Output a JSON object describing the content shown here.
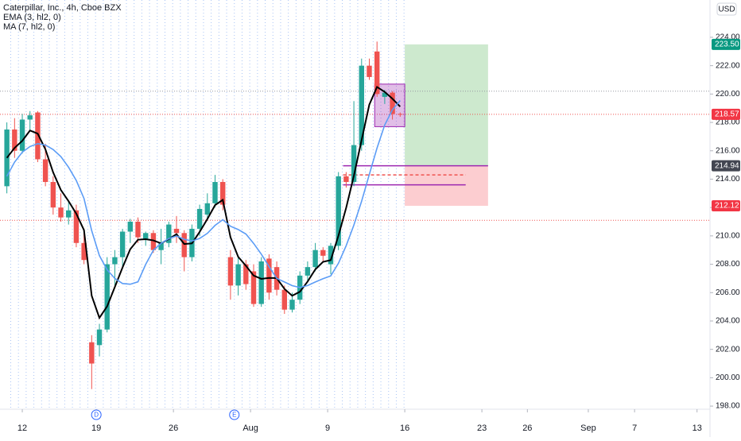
{
  "chart_data": {
    "type": "candlestick",
    "title": "Caterpillar, Inc., 4h, Cboe BZX",
    "currency": "USD",
    "up_color": "#26a69a",
    "down_color": "#ef5350",
    "x": [
      -2,
      -1,
      0,
      1,
      2,
      3,
      4,
      5,
      6,
      7,
      8,
      9,
      10,
      11,
      12,
      13,
      14,
      15,
      16,
      17,
      18,
      19,
      20,
      21,
      22,
      23,
      24,
      25,
      26,
      27,
      28,
      29,
      30,
      31,
      32,
      33,
      34,
      35,
      36,
      37,
      38,
      39,
      40,
      41,
      42,
      43,
      44,
      45,
      46,
      47,
      48,
      49
    ],
    "open": [
      213.5,
      217.5,
      216,
      218.2,
      218.7,
      215.4,
      213.8,
      212,
      211.3,
      211.8,
      209.5,
      202.5,
      202.3,
      203.4,
      208,
      208.5,
      210.3,
      211,
      209.8,
      210.2,
      209,
      209.5,
      210.5,
      210.2,
      208.5,
      210.5,
      211.5,
      212.3,
      213.8,
      208.5,
      206.5,
      208,
      207.5,
      205.2,
      208.4,
      207.8,
      206.2,
      204.8,
      205.5,
      207.2,
      207.8,
      209,
      208,
      209.3,
      214.2,
      213.8,
      216.4,
      222,
      223,
      219.8,
      220.1,
      218.6
    ],
    "high": [
      218,
      218.3,
      218.6,
      218.8,
      218.8,
      216.5,
      214.2,
      213,
      212.5,
      212.2,
      210.5,
      203,
      203.8,
      208.5,
      209,
      210.5,
      211.2,
      211.3,
      210.3,
      210.4,
      210.5,
      211,
      211.4,
      210.4,
      210.8,
      212.2,
      213,
      214.3,
      214,
      209,
      208.5,
      208.3,
      208,
      208.5,
      208.7,
      208.2,
      206.5,
      206,
      207.5,
      208.2,
      209.5,
      209.2,
      209.5,
      214.5,
      214.5,
      219.5,
      222.5,
      222.5,
      223.7,
      220.3,
      220.2,
      218.7
    ],
    "low": [
      213,
      215.5,
      215.8,
      217.5,
      215.2,
      213.5,
      211.5,
      211,
      210.8,
      209.2,
      208,
      199.2,
      201.5,
      203.2,
      206.5,
      207.8,
      209.5,
      209.5,
      209.3,
      208.8,
      208,
      209.2,
      209.5,
      207.5,
      208.2,
      210,
      211.2,
      212,
      211.8,
      205.5,
      205.8,
      206.2,
      205,
      205,
      205.5,
      205.8,
      204.5,
      204.6,
      205.2,
      206.8,
      207.5,
      208.2,
      207.3,
      209,
      213.4,
      213.5,
      216,
      221,
      219.8,
      219.3,
      218.2,
      218.4
    ],
    "close": [
      217.5,
      216,
      218.2,
      218.5,
      215.4,
      213.8,
      212,
      211.3,
      211.8,
      209.5,
      208.3,
      201,
      203.4,
      208,
      208.5,
      210.3,
      211,
      209.9,
      210.2,
      209,
      209.5,
      210.8,
      210.2,
      208.5,
      210.5,
      211.9,
      212.3,
      213.8,
      212.2,
      206.5,
      208,
      206.6,
      205.2,
      208.2,
      206,
      206.2,
      204.8,
      205.5,
      207.2,
      207.8,
      209,
      208.6,
      209.3,
      214.2,
      213.8,
      216.4,
      222,
      221.2,
      220,
      220.1,
      218.6,
      218.57
    ],
    "series": [
      {
        "name": "EMA (3, hl2, 0)",
        "color": "#000000",
        "values": [
          215.5,
          216.2,
          216.7,
          217.43,
          217.21,
          216.1,
          214.48,
          213.24,
          212.45,
          211.57,
          210.41,
          205.78,
          204.22,
          205.03,
          206.39,
          207.77,
          209.06,
          209.73,
          209.77,
          209.68,
          209.47,
          209.78,
          210.12,
          209.43,
          209.47,
          210.28,
          211.19,
          212.17,
          212.54,
          209.9,
          208.52,
          207.89,
          207.2,
          206.97,
          207.04,
          207.02,
          206.26,
          205.78,
          206.06,
          206.78,
          207.64,
          208.17,
          208.29,
          210.02,
          211.98,
          214.24,
          216.75,
          219.25,
          220.5,
          220.15,
          219.67,
          219.11
        ]
      },
      {
        "name": "MA (7, hl2, 0)",
        "color": "#5b9cf6",
        "values": [
          214.2,
          215.2,
          215.9,
          216.3,
          216.5,
          216.4,
          216.09,
          215.59,
          214.84,
          213.91,
          212.64,
          210.37,
          208.61,
          207.61,
          207.0,
          206.64,
          206.59,
          206.76,
          207.99,
          208.99,
          209.47,
          209.81,
          209.99,
          209.76,
          209.64,
          209.82,
          210.18,
          210.74,
          211.14,
          210.68,
          210.45,
          210.13,
          209.47,
          208.71,
          207.84,
          207.0,
          206.75,
          206.49,
          206.36,
          206.5,
          206.75,
          206.98,
          207.18,
          208.07,
          209.31,
          210.76,
          212.44,
          214.33,
          216.19,
          217.82,
          218.89,
          219.54
        ]
      }
    ],
    "xlim": [
      -2.89,
      89.18
    ],
    "xticks": [
      {
        "value": 0,
        "label": "12"
      },
      {
        "value": 9.6,
        "label": "19"
      },
      {
        "value": 19.6,
        "label": "26"
      },
      {
        "value": 29.6,
        "label": "Aug"
      },
      {
        "value": 39.6,
        "label": "9"
      },
      {
        "value": 49.6,
        "label": "16"
      },
      {
        "value": 59.6,
        "label": "23"
      },
      {
        "value": 65.5,
        "label": "26"
      },
      {
        "value": 73.4,
        "label": "Sep"
      },
      {
        "value": 79.4,
        "label": "7"
      },
      {
        "value": 87.5,
        "label": "13"
      }
    ],
    "ylim": [
      197.78,
      226.63
    ],
    "yticks": [
      {
        "value": 198,
        "label": "198.00"
      },
      {
        "value": 200,
        "label": "200.00"
      },
      {
        "value": 202,
        "label": "202.00"
      },
      {
        "value": 204,
        "label": "204.00"
      },
      {
        "value": 206,
        "label": "206.00"
      },
      {
        "value": 208,
        "label": "208.00"
      },
      {
        "value": 210,
        "label": "210.00"
      },
      {
        "value": 212,
        "label": "212.00"
      },
      {
        "value": 214,
        "label": "214.00"
      },
      {
        "value": 216,
        "label": "216.00"
      },
      {
        "value": 218,
        "label": "218.00"
      },
      {
        "value": 220,
        "label": "220.00"
      },
      {
        "value": 222,
        "label": "222.00"
      },
      {
        "value": 224,
        "label": "224.00"
      }
    ],
    "hlines": [
      {
        "value": 220.2,
        "color": "#9598a1"
      },
      {
        "value": 218.57,
        "color": "#ef5350"
      },
      {
        "value": 211.1,
        "color": "#ef5350"
      }
    ],
    "segments": [
      {
        "value": 214.94,
        "x": [
          41.6,
          60.4
        ],
        "color": "#9c27b0"
      },
      {
        "value": 213.6,
        "x": [
          41.6,
          57.5
        ],
        "color": "#9c27b0"
      },
      {
        "value": 214.3,
        "x": [
          41.6,
          57.5
        ],
        "color": "#ef5350"
      }
    ],
    "highlight": {
      "x": [
        45.7,
        49.6
      ],
      "y": [
        217.7,
        220.7
      ],
      "color": "#9c27b0"
    },
    "position": {
      "x": [
        49.6,
        60.4
      ],
      "entry": 214.94,
      "target": 223.5,
      "stop": 212.12
    },
    "price_labels": [
      {
        "value": 223.5,
        "label": "223.50",
        "color": "#089981"
      },
      {
        "value": 218.57,
        "label": "218.57",
        "color": "#f23645"
      },
      {
        "value": 214.94,
        "label": "214.94",
        "color": "#434651"
      },
      {
        "value": 212.12,
        "label": "212.12",
        "color": "#f23645"
      }
    ],
    "events": [
      {
        "label": "D",
        "x": 9.6
      },
      {
        "label": "E",
        "x": 27.5
      }
    ]
  }
}
